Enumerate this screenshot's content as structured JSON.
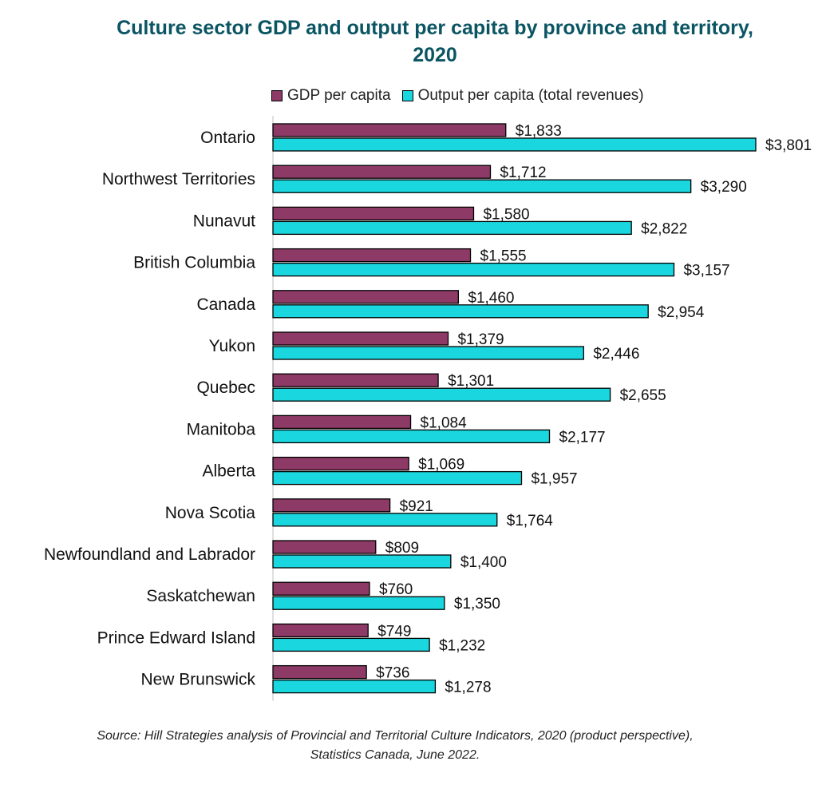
{
  "chart_data": {
    "type": "bar",
    "orientation": "horizontal",
    "title": "Culture sector GDP and output per capita by province and territory, 2020",
    "categories": [
      "Ontario",
      "Northwest Territories",
      "Nunavut",
      "British Columbia",
      "Canada",
      "Yukon",
      "Quebec",
      "Manitoba",
      "Alberta",
      "Nova Scotia",
      "Newfoundland and Labrador",
      "Saskatchewan",
      "Prince Edward Island",
      "New Brunswick"
    ],
    "series": [
      {
        "name": "GDP per capita",
        "color": "#8e3a67",
        "values": [
          1833,
          1712,
          1580,
          1555,
          1460,
          1379,
          1301,
          1084,
          1069,
          921,
          809,
          760,
          749,
          736
        ],
        "labels": [
          "$1,833",
          "$1,712",
          "$1,580",
          "$1,555",
          "$1,460",
          "$1,379",
          "$1,301",
          "$1,084",
          "$1,069",
          "$921",
          "$809",
          "$760",
          "$749",
          "$736"
        ]
      },
      {
        "name": "Output per capita (total revenues)",
        "color": "#1ad6de",
        "values": [
          3801,
          3290,
          2822,
          3157,
          2954,
          2446,
          2655,
          2177,
          1957,
          1764,
          1400,
          1350,
          1232,
          1278
        ],
        "labels": [
          "$3,801",
          "$3,290",
          "$2,822",
          "$3,157",
          "$2,954",
          "$2,446",
          "$2,655",
          "$2,177",
          "$1,957",
          "$1,764",
          "$1,400",
          "$1,350",
          "$1,232",
          "$1,278"
        ]
      }
    ],
    "xlim": [
      0,
      3801
    ],
    "grid": false,
    "legend_position": "top"
  },
  "source": {
    "line1": "Source: Hill Strategies analysis of Provincial and Territorial Culture Indicators, 2020 (product perspective),",
    "line2": "Statistics Canada, June 2022."
  }
}
